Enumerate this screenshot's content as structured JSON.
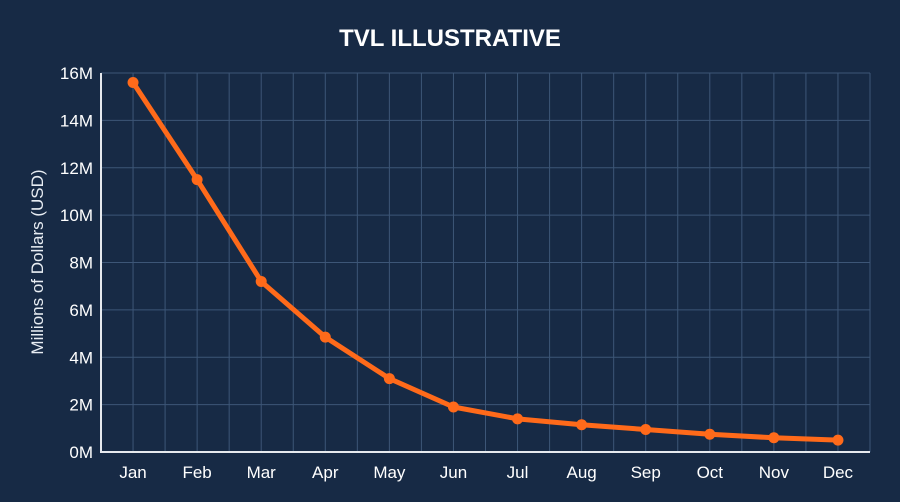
{
  "chart_data": {
    "type": "line",
    "title": "TVL ILLUSTRATIVE",
    "xlabel": "",
    "ylabel": "Millions of Dollars (USD)",
    "categories": [
      "Jan",
      "Feb",
      "Mar",
      "Apr",
      "May",
      "Jun",
      "Jul",
      "Aug",
      "Sep",
      "Oct",
      "Nov",
      "Dec"
    ],
    "series": [
      {
        "name": "TVL",
        "values": [
          15.6,
          11.5,
          7.2,
          4.85,
          3.1,
          1.9,
          1.4,
          1.15,
          0.95,
          0.75,
          0.6,
          0.5
        ]
      }
    ],
    "ylim": [
      0,
      16
    ],
    "yticks": [
      0,
      2,
      4,
      6,
      8,
      10,
      12,
      14,
      16
    ],
    "ytick_labels": [
      "0M",
      "2M",
      "4M",
      "6M",
      "8M",
      "10M",
      "12M",
      "14M",
      "16M"
    ],
    "grid": true,
    "legend": "none",
    "colors": {
      "background": "#172a45",
      "line": "#ff6a1a",
      "grid": "#3d5677",
      "axis": "#e6e9ee",
      "text": "#ffffff"
    }
  }
}
